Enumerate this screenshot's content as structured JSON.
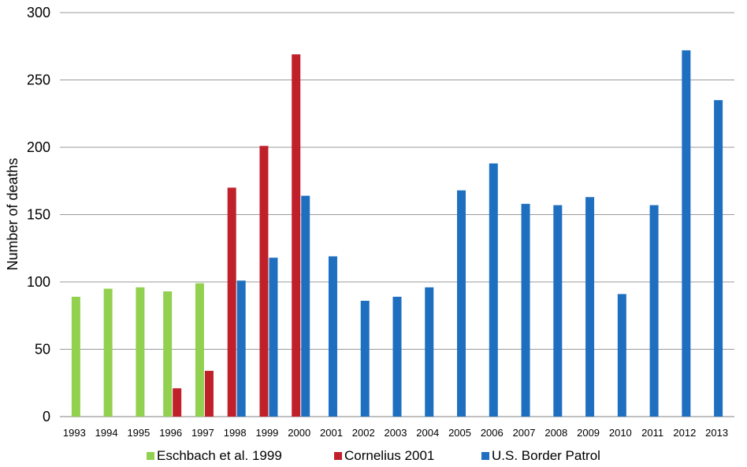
{
  "chart_data": {
    "type": "bar",
    "ylabel": "Number of deaths",
    "xlabel": "",
    "ylim": [
      0,
      300
    ],
    "yticks": [
      "0",
      "50",
      "100",
      "150",
      "200",
      "250",
      "300"
    ],
    "grid": true,
    "legend_position": "bottom",
    "categories": [
      "1993",
      "1994",
      "1995",
      "1996",
      "1997",
      "1998",
      "1999",
      "2000",
      "2001",
      "2002",
      "2003",
      "2004",
      "2005",
      "2006",
      "2007",
      "2008",
      "2009",
      "2010",
      "2011",
      "2012",
      "2013"
    ],
    "series": [
      {
        "name": "Eschbach et al. 1999",
        "color": "#92d050",
        "values": [
          89,
          95,
          96,
          93,
          99,
          null,
          null,
          null,
          null,
          null,
          null,
          null,
          null,
          null,
          null,
          null,
          null,
          null,
          null,
          null,
          null
        ]
      },
      {
        "name": "Cornelius 2001",
        "color": "#c0202a",
        "values": [
          null,
          null,
          null,
          21,
          34,
          170,
          201,
          269,
          null,
          null,
          null,
          null,
          null,
          null,
          null,
          null,
          null,
          null,
          null,
          null,
          null
        ]
      },
      {
        "name": "U.S. Border Patrol",
        "color": "#1f6fc0",
        "values": [
          null,
          null,
          null,
          null,
          null,
          101,
          118,
          164,
          119,
          86,
          89,
          96,
          168,
          188,
          158,
          157,
          163,
          91,
          157,
          272,
          235
        ]
      }
    ]
  }
}
